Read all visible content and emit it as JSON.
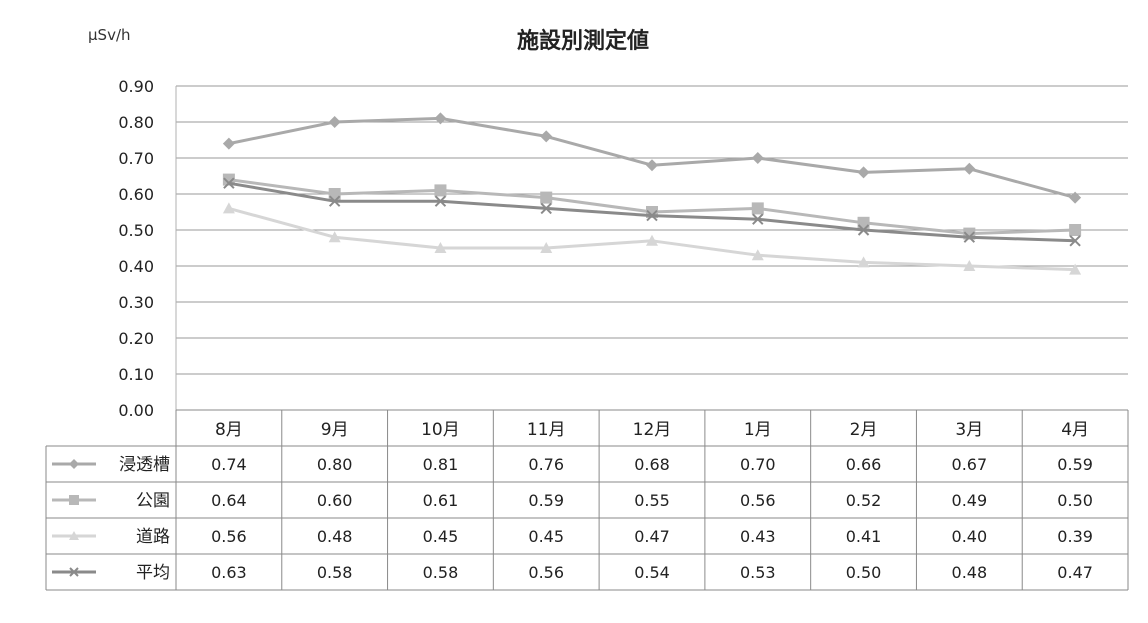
{
  "chart_data": {
    "type": "line",
    "title": "施設別測定値",
    "unit_label": "μSv/h",
    "ylim": [
      0,
      0.9
    ],
    "yticks": [
      "0.00",
      "0.10",
      "0.20",
      "0.30",
      "0.40",
      "0.50",
      "0.60",
      "0.70",
      "0.80",
      "0.90"
    ],
    "grid": true,
    "legend": "data-table",
    "categories": [
      "8月",
      "9月",
      "10月",
      "11月",
      "12月",
      "1月",
      "2月",
      "3月",
      "4月"
    ],
    "series": [
      {
        "name": "浸透槽",
        "marker": "diamond",
        "color": "#a9a9a9",
        "values": [
          0.74,
          0.8,
          0.81,
          0.76,
          0.68,
          0.7,
          0.66,
          0.67,
          0.59
        ],
        "labels": [
          "0.74",
          "0.80",
          "0.81",
          "0.76",
          "0.68",
          "0.70",
          "0.66",
          "0.67",
          "0.59"
        ]
      },
      {
        "name": "公園",
        "marker": "square",
        "color": "#b8b8b8",
        "values": [
          0.64,
          0.6,
          0.61,
          0.59,
          0.55,
          0.56,
          0.52,
          0.49,
          0.5
        ],
        "labels": [
          "0.64",
          "0.60",
          "0.61",
          "0.59",
          "0.55",
          "0.56",
          "0.52",
          "0.49",
          "0.50"
        ]
      },
      {
        "name": "道路",
        "marker": "triangle",
        "color": "#d6d6d6",
        "values": [
          0.56,
          0.48,
          0.45,
          0.45,
          0.47,
          0.43,
          0.41,
          0.4,
          0.39
        ],
        "labels": [
          "0.56",
          "0.48",
          "0.45",
          "0.45",
          "0.47",
          "0.43",
          "0.41",
          "0.40",
          "0.39"
        ]
      },
      {
        "name": "平均",
        "marker": "x",
        "color": "#8a8a8a",
        "values": [
          0.63,
          0.58,
          0.58,
          0.56,
          0.54,
          0.53,
          0.5,
          0.48,
          0.47
        ],
        "labels": [
          "0.63",
          "0.58",
          "0.58",
          "0.56",
          "0.54",
          "0.53",
          "0.50",
          "0.48",
          "0.47"
        ]
      }
    ]
  }
}
